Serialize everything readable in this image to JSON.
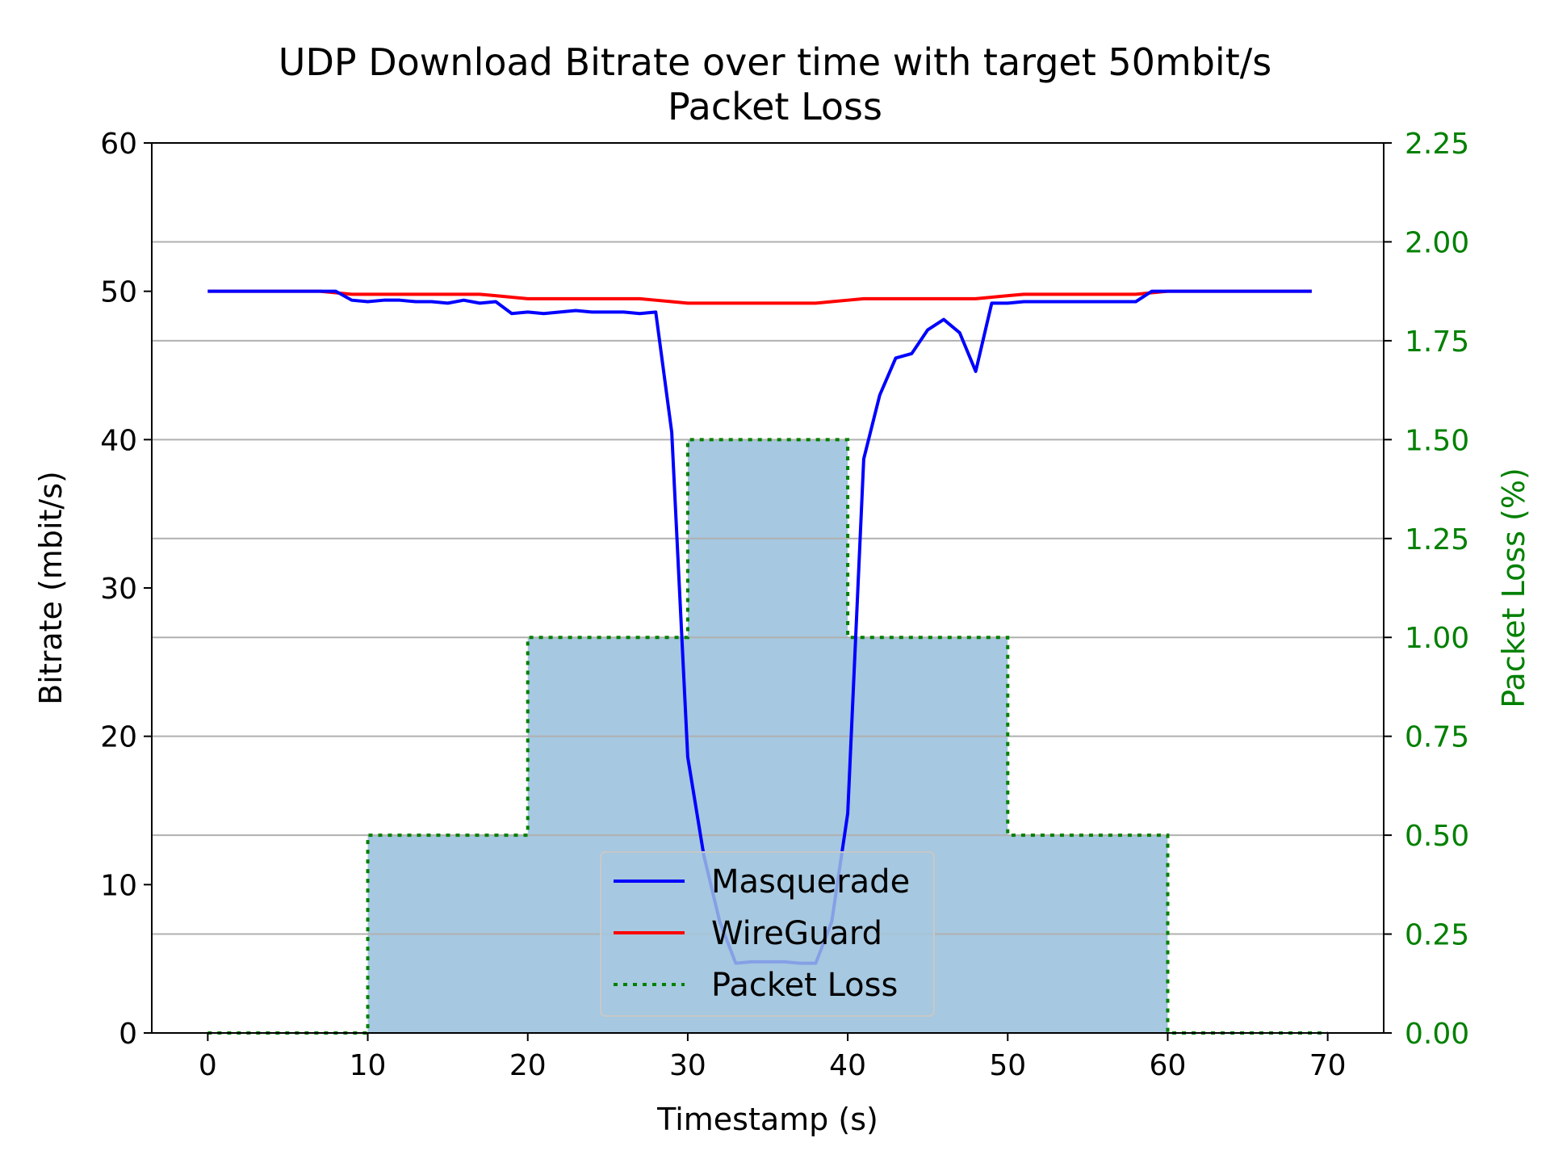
{
  "chart_data": {
    "type": "line",
    "title": "UDP Download Bitrate over time with target 50mbit/s",
    "subtitle": "Packet Loss",
    "xlabel": "Timestamp (s)",
    "ylabel": "Bitrate (mbit/s)",
    "y2label": "Packet Loss (%)",
    "xlim": [
      -3.5,
      73.5
    ],
    "ylim": [
      0,
      60
    ],
    "y2lim": [
      0,
      2.25
    ],
    "xticks": [
      0,
      10,
      20,
      30,
      40,
      50,
      60,
      70
    ],
    "yticks": [
      0,
      10,
      20,
      30,
      40,
      50,
      60
    ],
    "y2ticks": [
      "0.00",
      "0.25",
      "0.50",
      "0.75",
      "1.00",
      "1.25",
      "1.50",
      "1.75",
      "2.00",
      "2.25"
    ],
    "grid": "horizontal lines at right axis ticks",
    "legend": {
      "placement": "lower-center",
      "entries": [
        "Masquerade",
        "WireGuard",
        "Packet Loss"
      ]
    },
    "colors": {
      "masquerade": "#0000ff",
      "wireguard": "#ff0000",
      "packet_loss_line": "#008000",
      "packet_loss_fill": "#a6c8e0",
      "right_axis": "#008000",
      "grid": "#b0b0b0"
    },
    "series": [
      {
        "name": "Masquerade",
        "axis": "left",
        "x": [
          0,
          1,
          2,
          3,
          4,
          5,
          6,
          7,
          8,
          9,
          10,
          11,
          12,
          13,
          14,
          15,
          16,
          17,
          18,
          19,
          20,
          21,
          22,
          23,
          24,
          25,
          26,
          27,
          28,
          29,
          30,
          31,
          32,
          33,
          34,
          35,
          36,
          37,
          38,
          39,
          40,
          41,
          42,
          43,
          44,
          45,
          46,
          47,
          48,
          49,
          50,
          51,
          52,
          53,
          54,
          55,
          56,
          57,
          58,
          59,
          60,
          61,
          62,
          63,
          64,
          65,
          66,
          67,
          68,
          69
        ],
        "values": [
          50,
          50,
          50,
          50,
          50,
          50,
          50,
          50,
          50,
          49.4,
          49.3,
          49.4,
          49.4,
          49.3,
          49.3,
          49.2,
          49.4,
          49.2,
          49.3,
          48.5,
          48.6,
          48.5,
          48.6,
          48.7,
          48.6,
          48.6,
          48.6,
          48.5,
          48.6,
          40.5,
          18.6,
          12.0,
          7.5,
          4.7,
          4.8,
          4.8,
          4.8,
          4.7,
          4.7,
          7.5,
          14.8,
          38.7,
          43.0,
          45.5,
          45.8,
          47.4,
          48.1,
          47.2,
          44.6,
          49.2,
          49.2,
          49.3,
          49.3,
          49.3,
          49.3,
          49.3,
          49.3,
          49.3,
          49.3,
          50,
          50,
          50,
          50,
          50,
          50,
          50,
          50,
          50,
          50,
          50
        ]
      },
      {
        "name": "WireGuard",
        "axis": "left",
        "x": [
          0,
          1,
          2,
          3,
          4,
          5,
          6,
          7,
          8,
          9,
          10,
          11,
          12,
          13,
          14,
          15,
          16,
          17,
          18,
          19,
          20,
          21,
          22,
          23,
          24,
          25,
          26,
          27,
          28,
          29,
          30,
          31,
          32,
          33,
          34,
          35,
          36,
          37,
          38,
          39,
          40,
          41,
          42,
          43,
          44,
          45,
          46,
          47,
          48,
          49,
          50,
          51,
          52,
          53,
          54,
          55,
          56,
          57,
          58,
          59,
          60,
          61,
          62,
          63,
          64,
          65,
          66,
          67,
          68,
          69
        ],
        "values": [
          50,
          50,
          50,
          50,
          50,
          50,
          50,
          50,
          49.9,
          49.8,
          49.8,
          49.8,
          49.8,
          49.8,
          49.8,
          49.8,
          49.8,
          49.8,
          49.7,
          49.6,
          49.5,
          49.5,
          49.5,
          49.5,
          49.5,
          49.5,
          49.5,
          49.5,
          49.4,
          49.3,
          49.2,
          49.2,
          49.2,
          49.2,
          49.2,
          49.2,
          49.2,
          49.2,
          49.2,
          49.3,
          49.4,
          49.5,
          49.5,
          49.5,
          49.5,
          49.5,
          49.5,
          49.5,
          49.5,
          49.6,
          49.7,
          49.8,
          49.8,
          49.8,
          49.8,
          49.8,
          49.8,
          49.8,
          49.8,
          49.9,
          50,
          50,
          50,
          50,
          50,
          50,
          50,
          50,
          50,
          50
        ]
      },
      {
        "name": "Packet Loss",
        "axis": "right",
        "style": "step",
        "x": [
          0,
          10,
          20,
          30,
          40,
          50,
          60,
          70
        ],
        "values": [
          0,
          0.5,
          1.0,
          1.5,
          1.0,
          0.5,
          0,
          0
        ]
      }
    ]
  }
}
